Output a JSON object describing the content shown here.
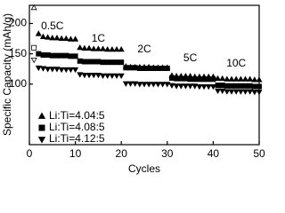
{
  "chart_data": {
    "type": "scatter",
    "x_label": "Cycles",
    "y_label": "Specific Capacity (mAh/g)",
    "annotations": [
      "0.5C",
      "1C",
      "2C",
      "5C",
      "10C"
    ],
    "x": [
      1,
      2,
      3,
      4,
      5,
      6,
      7,
      8,
      9,
      10,
      11,
      12,
      13,
      14,
      15,
      16,
      17,
      18,
      19,
      20,
      21,
      22,
      23,
      24,
      25,
      26,
      27,
      28,
      29,
      30,
      31,
      32,
      33,
      34,
      35,
      36,
      37,
      38,
      39,
      40,
      41,
      42,
      43,
      44,
      45,
      46,
      47,
      48,
      49,
      50
    ],
    "series": [
      {
        "name": "Li:Ti=4.04:5",
        "color": "#000000",
        "marker": "triangle-up",
        "values": [
          226,
          183,
          178,
          177,
          176,
          176,
          175,
          175,
          174,
          174,
          160,
          159,
          159,
          158,
          158,
          158,
          157,
          157,
          157,
          157,
          129,
          128,
          128,
          128,
          128,
          128,
          127,
          127,
          127,
          127,
          114,
          113,
          113,
          113,
          113,
          112,
          112,
          112,
          112,
          112,
          109,
          109,
          108,
          108,
          108,
          108,
          108,
          108,
          107,
          107
        ]
      },
      {
        "name": "Li:Ti=4.08:5",
        "color": "#000000",
        "marker": "square",
        "values": [
          160,
          150,
          148,
          148,
          147,
          147,
          147,
          147,
          146,
          146,
          138,
          137,
          137,
          137,
          137,
          136,
          136,
          136,
          136,
          136,
          127,
          127,
          127,
          126,
          126,
          126,
          126,
          126,
          126,
          126,
          110,
          109,
          109,
          109,
          108,
          108,
          108,
          108,
          108,
          108,
          98,
          98,
          97,
          97,
          97,
          97,
          97,
          97,
          96,
          96
        ]
      },
      {
        "name": "Li:Ti=4.12:5",
        "color": "#000000",
        "marker": "triangle-down",
        "values": [
          140,
          127,
          126,
          125,
          125,
          125,
          124,
          124,
          124,
          124,
          116,
          115,
          115,
          115,
          115,
          114,
          114,
          114,
          114,
          114,
          101,
          101,
          101,
          100,
          100,
          100,
          100,
          100,
          100,
          100,
          98,
          97,
          97,
          97,
          97,
          97,
          96,
          96,
          96,
          96,
          89,
          89,
          88,
          88,
          88,
          88,
          88,
          88,
          87,
          87
        ]
      }
    ],
    "xlim": [
      0,
      50
    ],
    "xticks": [
      0,
      10,
      20,
      30,
      40,
      50
    ],
    "ylim": [
      0,
      230
    ],
    "yticks": [
      100,
      150,
      200
    ],
    "grid": false,
    "legend": "lower-left"
  }
}
